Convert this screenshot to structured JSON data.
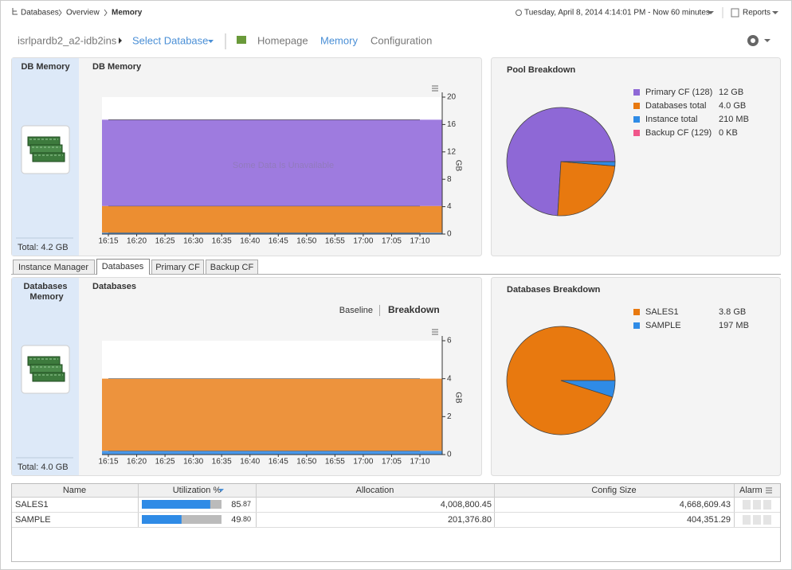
{
  "breadcrumb": {
    "items": [
      "Databases",
      "Overview",
      "Memory"
    ]
  },
  "header": {
    "time_range": "Tuesday, April 8, 2014 4:14:01 PM - Now 60 minutes",
    "reports": "Reports",
    "instance": "isrlpardb2_a2-idb2ins",
    "select_database": "Select Database",
    "nav": [
      "Homepage",
      "Memory",
      "Configuration"
    ]
  },
  "db_memory": {
    "side_title": "DB Memory",
    "total": "Total: 4.2 GB",
    "chart": {
      "type": "area",
      "title": "DB Memory",
      "annotation": "Some Data Is Unavailable",
      "y_label": "GB",
      "categories": [
        "16:15",
        "16:20",
        "16:25",
        "16:30",
        "16:35",
        "16:40",
        "16:45",
        "16:50",
        "16:55",
        "17:00",
        "17:05",
        "17:10"
      ],
      "series": [
        {
          "color": "#3a8ee6",
          "values": [
            0.2,
            0.2,
            0.2,
            0.2,
            0.2,
            0.2,
            0.2,
            0.2,
            0.2,
            0.2,
            0.2,
            0.2
          ]
        },
        {
          "color": "#ea8420",
          "values": [
            3.9,
            3.9,
            3.9,
            3.9,
            3.9,
            3.9,
            3.9,
            3.9,
            3.9,
            3.9,
            3.9,
            3.9
          ]
        },
        {
          "color": "#9670dc",
          "values": [
            12.6,
            12.6,
            12.6,
            12.6,
            12.6,
            12.6,
            12.6,
            12.6,
            12.6,
            12.6,
            12.6,
            12.6
          ]
        }
      ],
      "ylim": [
        0,
        20
      ],
      "yticks": [
        0,
        4,
        8,
        12,
        16,
        20
      ]
    }
  },
  "pool_breakdown": {
    "chart": {
      "type": "pie",
      "title": "Pool Breakdown",
      "categories": [
        "Primary CF (128)",
        "Databases total",
        "Instance total",
        "Backup CF (129)"
      ],
      "values": [
        12,
        4.0,
        0.21,
        0
      ],
      "value_labels": [
        "12 GB",
        "4.0 GB",
        "210 MB",
        "0 KB"
      ],
      "colors": [
        "#8e68d6",
        "#e8790f",
        "#2f8be6",
        "#f0568a"
      ]
    }
  },
  "tabs": [
    "Instance Manager",
    "Databases",
    "Primary CF",
    "Backup CF"
  ],
  "databases_memory": {
    "side_title": "Databases Memory",
    "total": "Total: 4.0 GB",
    "toggle": [
      "Baseline",
      "Breakdown"
    ],
    "chart": {
      "type": "area",
      "title": "Databases",
      "y_label": "GB",
      "categories": [
        "16:15",
        "16:20",
        "16:25",
        "16:30",
        "16:35",
        "16:40",
        "16:45",
        "16:50",
        "16:55",
        "17:00",
        "17:05",
        "17:10"
      ],
      "series": [
        {
          "color": "#3a8ee6",
          "values": [
            0.2,
            0.2,
            0.2,
            0.2,
            0.2,
            0.2,
            0.2,
            0.2,
            0.2,
            0.2,
            0.2,
            0.2
          ]
        },
        {
          "color": "#ec8a2c",
          "values": [
            3.8,
            3.8,
            3.8,
            3.8,
            3.8,
            3.8,
            3.8,
            3.8,
            3.8,
            3.8,
            3.8,
            3.8
          ]
        }
      ],
      "ylim": [
        0,
        6
      ],
      "yticks": [
        0,
        2,
        4,
        6
      ]
    }
  },
  "databases_breakdown": {
    "chart": {
      "type": "pie",
      "title": "Databases Breakdown",
      "categories": [
        "SALES1",
        "SAMPLE"
      ],
      "values": [
        3.8,
        0.197
      ],
      "value_labels": [
        "3.8 GB",
        "197 MB"
      ],
      "colors": [
        "#e8790f",
        "#2f8be6"
      ]
    }
  },
  "table": {
    "columns": [
      "Name",
      "Utilization %",
      "Allocation",
      "Config Size",
      "Alarm"
    ],
    "rows": [
      {
        "name": "SALES1",
        "utilization": 85.87,
        "utilization_label": "85.87",
        "allocation": "4,008,800.45",
        "config_size": "4,668,609.43"
      },
      {
        "name": "SAMPLE",
        "utilization": 49.8,
        "utilization_label": "49.80",
        "allocation": "201,376.80",
        "config_size": "404,351.29"
      }
    ]
  }
}
